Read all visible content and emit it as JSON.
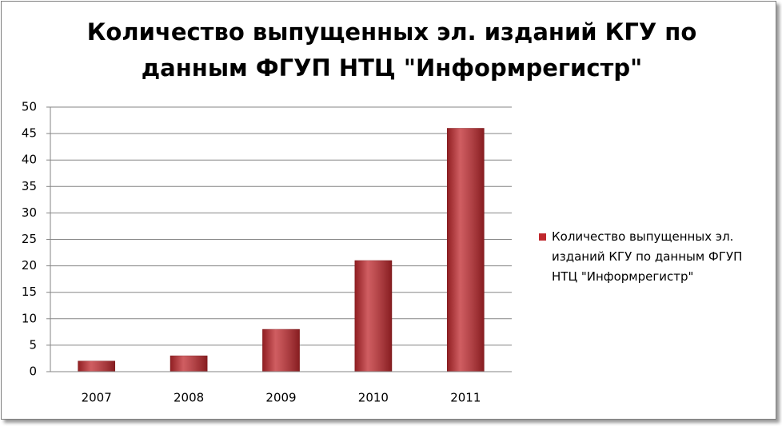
{
  "chart_data": {
    "type": "bar",
    "title": "Количество выпущенных эл. изданий КГУ по данным ФГУП НТЦ \"Информрегистр\"",
    "categories": [
      "2007",
      "2008",
      "2009",
      "2010",
      "2011"
    ],
    "series": [
      {
        "name": "Количество выпущенных эл. изданий КГУ по данным ФГУП НТЦ \"Информрегистр\"",
        "color": "#c0282d",
        "values": [
          2,
          3,
          8,
          21,
          46
        ]
      }
    ],
    "ylim": [
      0,
      50
    ],
    "yticks": [
      0,
      5,
      10,
      15,
      20,
      25,
      30,
      35,
      40,
      45,
      50
    ],
    "grid": true
  }
}
